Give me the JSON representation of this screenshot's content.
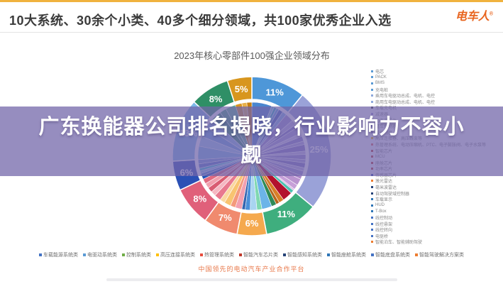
{
  "header": {
    "title": "10大系统、30余个小类、40多个细分领域，共100家优秀企业入选",
    "logo": "电车人",
    "logo_mark": "®"
  },
  "overlay": {
    "headline": "广东换能器公司排名揭晓，行业影响力不容小觑"
  },
  "chart_data": {
    "type": "pie",
    "title": "2023年核心零部件100强企业领域分布",
    "legend_position": "bottom",
    "categories": [
      "车载能源系统类",
      "电驱动系统类",
      "控制系统类",
      "高压连接系统类",
      "热管理系统类",
      "智能汽车芯片类",
      "智能感知系统类",
      "智能座舱系统类",
      "智能底盘系统类",
      "智能驾驶解决方案类"
    ],
    "values": [
      11,
      25,
      11,
      6,
      7,
      8,
      6,
      13,
      8,
      5
    ],
    "colors": [
      "#4e97d8",
      "#9aa2d8",
      "#3fae7e",
      "#f5a94e",
      "#f08a6e",
      "#e0607a",
      "#2b50b5",
      "#7db8e8",
      "#2f8f66",
      "#d8961e"
    ],
    "inner_slices": [
      {
        "value": 6,
        "color": "#4a86cf"
      },
      {
        "value": 0.8,
        "color": "#7ad0e6"
      },
      {
        "value": 0.8,
        "color": "#2ab0c5"
      },
      {
        "value": 0.8,
        "color": "#5aa7e0"
      },
      {
        "value": 1.3,
        "color": "#3a66b8"
      },
      {
        "value": 1.3,
        "color": "#7fb3e8"
      },
      {
        "value": 2.5,
        "color": "#9b8ed2"
      },
      {
        "value": 1.5,
        "color": "#b9aede"
      },
      {
        "value": 1,
        "color": "#8577c6"
      },
      {
        "value": 2,
        "color": "#a89bd6"
      },
      {
        "value": 1,
        "color": "#cfc6ea"
      },
      {
        "value": 1.5,
        "color": "#9184cb"
      },
      {
        "value": 1,
        "color": "#b3a7dd"
      },
      {
        "value": 2,
        "color": "#887ac5"
      },
      {
        "value": 1,
        "color": "#c4b9e4"
      },
      {
        "value": 1.5,
        "color": "#978ace"
      },
      {
        "value": 1,
        "color": "#aa9ed8"
      },
      {
        "value": 1.5,
        "color": "#8073c2"
      },
      {
        "value": 1,
        "color": "#bdb1e0"
      },
      {
        "value": 1.5,
        "color": "#9f92d3"
      },
      {
        "value": 1,
        "color": "#ab86c8"
      },
      {
        "value": 2,
        "color": "#b993cf"
      },
      {
        "value": 1.5,
        "color": "#c79fd8"
      },
      {
        "value": 0.5,
        "color": "#d8b5e2"
      },
      {
        "value": 1,
        "color": "#4cc3b0"
      },
      {
        "value": 3,
        "color": "#b3122e"
      },
      {
        "value": 1.5,
        "color": "#d87f28"
      },
      {
        "value": 1,
        "color": "#b5651d"
      },
      {
        "value": 1.5,
        "color": "#2e8b57"
      },
      {
        "value": 3,
        "color": "#6cb4e8"
      },
      {
        "value": 1.5,
        "color": "#7fd8b0"
      },
      {
        "value": 2,
        "color": "#a8d4f0"
      },
      {
        "value": 1.5,
        "color": "#4a90d9"
      },
      {
        "value": 1,
        "color": "#3566b0"
      },
      {
        "value": 2,
        "color": "#f2a0b0"
      },
      {
        "value": 1.5,
        "color": "#f49a7c"
      },
      {
        "value": 2,
        "color": "#f8c471"
      },
      {
        "value": 1.5,
        "color": "#fad7a0"
      },
      {
        "value": 2,
        "color": "#e8798f"
      },
      {
        "value": 1.5,
        "color": "#f5b7c2"
      },
      {
        "value": 1.5,
        "color": "#d95c72"
      },
      {
        "value": 1.5,
        "color": "#f0a0ae"
      },
      {
        "value": 1.5,
        "color": "#e06a80"
      },
      {
        "value": 1,
        "color": "#2255b8"
      },
      {
        "value": 0.8,
        "color": "#4f86d8"
      },
      {
        "value": 0.8,
        "color": "#8ec6f0"
      },
      {
        "value": 0.8,
        "color": "#35c0d8"
      },
      {
        "value": 1.3,
        "color": "#5577cc"
      },
      {
        "value": 1.3,
        "color": "#7799dd"
      },
      {
        "value": 4,
        "color": "#7db8e8"
      },
      {
        "value": 3,
        "color": "#9fcbef"
      },
      {
        "value": 3,
        "color": "#6aa8e0"
      },
      {
        "value": 3,
        "color": "#8abde8"
      },
      {
        "value": 3,
        "color": "#2f9268"
      },
      {
        "value": 2,
        "color": "#45a87c"
      },
      {
        "value": 3,
        "color": "#5cb890"
      },
      {
        "value": 2,
        "color": "#d9941f"
      },
      {
        "value": 1.5,
        "color": "#e8b04a"
      },
      {
        "value": 1.5,
        "color": "#c87f10"
      }
    ]
  },
  "legend_right": {
    "items": [
      {
        "label": "电芯",
        "color": "#5b9bd5"
      },
      {
        "label": "PACK",
        "color": "#5b9bd5"
      },
      {
        "label": "BMS",
        "color": "#5b9bd5"
      },
      {
        "label": "充电桩",
        "color": "#5b9bd5"
      },
      {
        "label": "乘用车电驱动总成、电机、电控",
        "color": "#8faadc"
      },
      {
        "label": "商用车电驱动总成、电机、电控",
        "color": "#8faadc"
      },
      {
        "label": "车载充电机",
        "color": "#333333"
      },
      {
        "label": "减速器",
        "color": "#9b8ed2"
      },
      {
        "label": "功率半导体",
        "color": "#9b8ed2"
      },
      {
        "label": "整车控制器",
        "color": "#9b8ed2"
      },
      {
        "label": "域控制器",
        "color": "#9b8ed2"
      },
      {
        "label": "高压连接器、高压线束等",
        "color": "#ffc000"
      },
      {
        "label": "热管理系统、电动压缩机、PTC、电子膨胀阀、电子水泵等",
        "color": "#e8645a"
      },
      {
        "label": "智能芯片",
        "color": "#c0392b"
      },
      {
        "label": "MCU",
        "color": "#c0392b"
      },
      {
        "label": "座舱芯片",
        "color": "#c0392b"
      },
      {
        "label": "功率芯片",
        "color": "#c0392b"
      },
      {
        "label": "传感器芯片",
        "color": "#2b50b5"
      },
      {
        "label": "激光雷达",
        "color": "#ed7d31"
      },
      {
        "label": "毫米波雷达",
        "color": "#264478"
      },
      {
        "label": "自动驾驶域控制器",
        "color": "#264478"
      },
      {
        "label": "车载显示",
        "color": "#2e75b6"
      },
      {
        "label": "HUD",
        "color": "#2e75b6"
      },
      {
        "label": "T-Box",
        "color": "#2e75b6"
      },
      {
        "label": "线控制动",
        "color": "#4472c4"
      },
      {
        "label": "线控悬架",
        "color": "#4472c4"
      },
      {
        "label": "线控转向",
        "color": "#4472c4"
      },
      {
        "label": "电驱桥",
        "color": "#4472c4"
      },
      {
        "label": "智能泊车、智能辅助驾驶",
        "color": "#ed7d31"
      }
    ]
  },
  "legend_bottom": {
    "items": [
      {
        "label": "车载能源系统类",
        "color": "#4472c4"
      },
      {
        "label": "电驱动系统类",
        "color": "#5b9bd5"
      },
      {
        "label": "控制系统类",
        "color": "#70ad47"
      },
      {
        "label": "高压连接系统类",
        "color": "#ffc000"
      },
      {
        "label": "热管理系统类",
        "color": "#e84c3d"
      },
      {
        "label": "智能汽车芯片类",
        "color": "#c0392b"
      },
      {
        "label": "智能感知系统类",
        "color": "#264478"
      },
      {
        "label": "智能座舱系统类",
        "color": "#2e75b6"
      },
      {
        "label": "智能底盘系统类",
        "color": "#4472c4"
      },
      {
        "label": "智能驾驶解决方案类",
        "color": "#ed7d31"
      }
    ]
  },
  "footer": {
    "tagline": "中国领先的电动汽车产业合作平台"
  }
}
